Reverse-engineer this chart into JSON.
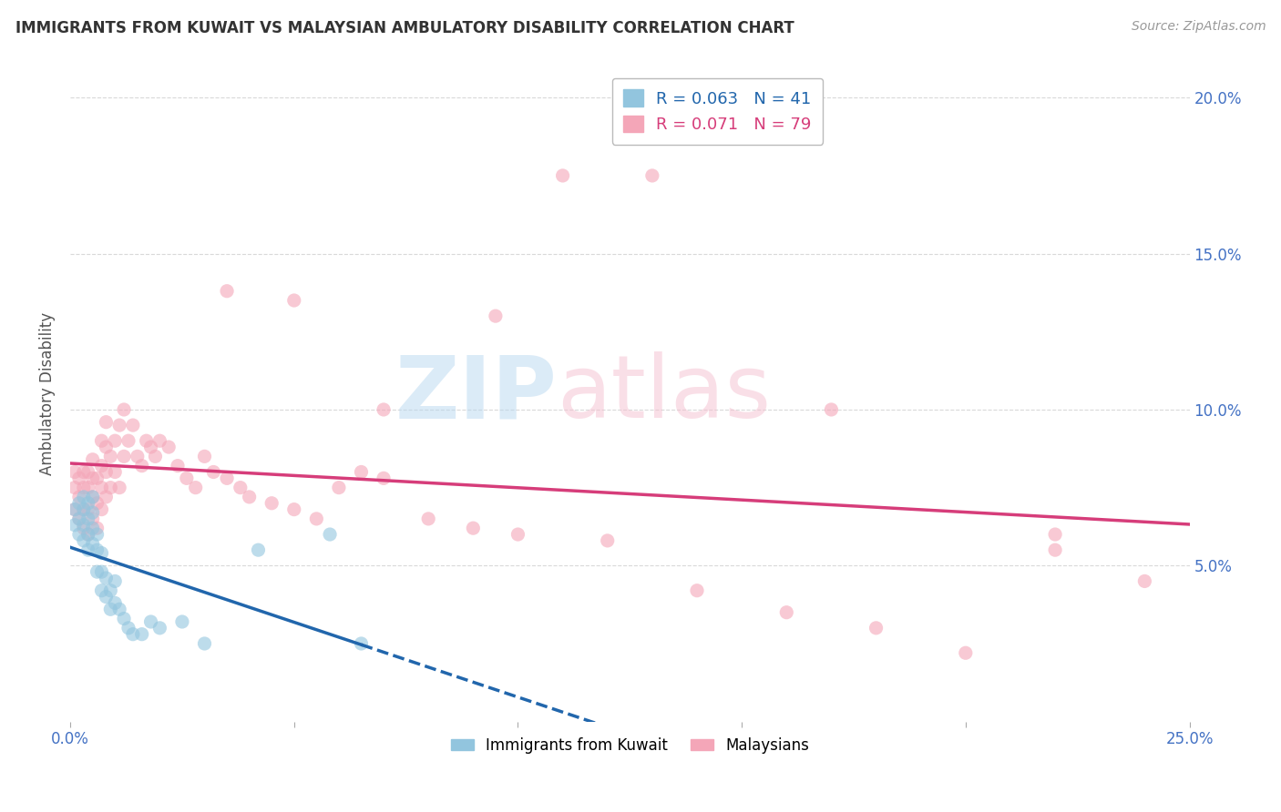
{
  "title": "IMMIGRANTS FROM KUWAIT VS MALAYSIAN AMBULATORY DISABILITY CORRELATION CHART",
  "source": "Source: ZipAtlas.com",
  "ylabel": "Ambulatory Disability",
  "xlim": [
    0.0,
    0.25
  ],
  "ylim": [
    0.0,
    0.21
  ],
  "color_blue": "#92c5de",
  "color_pink": "#f4a6b8",
  "color_line_blue": "#2166ac",
  "color_line_pink": "#d63d7a",
  "background_color": "#ffffff",
  "grid_color": "#d0d0d0",
  "kuwait_x": [
    0.001,
    0.001,
    0.002,
    0.002,
    0.002,
    0.003,
    0.003,
    0.003,
    0.003,
    0.004,
    0.004,
    0.004,
    0.004,
    0.005,
    0.005,
    0.005,
    0.005,
    0.006,
    0.006,
    0.006,
    0.007,
    0.007,
    0.007,
    0.008,
    0.008,
    0.009,
    0.009,
    0.01,
    0.01,
    0.011,
    0.012,
    0.013,
    0.014,
    0.016,
    0.018,
    0.02,
    0.025,
    0.03,
    0.042,
    0.058,
    0.065
  ],
  "kuwait_y": [
    0.063,
    0.068,
    0.06,
    0.065,
    0.07,
    0.058,
    0.063,
    0.068,
    0.072,
    0.055,
    0.06,
    0.065,
    0.07,
    0.057,
    0.062,
    0.067,
    0.072,
    0.048,
    0.055,
    0.06,
    0.042,
    0.048,
    0.054,
    0.04,
    0.046,
    0.036,
    0.042,
    0.038,
    0.045,
    0.036,
    0.033,
    0.03,
    0.028,
    0.028,
    0.032,
    0.03,
    0.032,
    0.025,
    0.055,
    0.06,
    0.025
  ],
  "malaysia_x": [
    0.001,
    0.001,
    0.001,
    0.002,
    0.002,
    0.002,
    0.003,
    0.003,
    0.003,
    0.003,
    0.004,
    0.004,
    0.004,
    0.004,
    0.005,
    0.005,
    0.005,
    0.005,
    0.006,
    0.006,
    0.006,
    0.007,
    0.007,
    0.007,
    0.007,
    0.008,
    0.008,
    0.008,
    0.008,
    0.009,
    0.009,
    0.01,
    0.01,
    0.011,
    0.011,
    0.012,
    0.012,
    0.013,
    0.014,
    0.015,
    0.016,
    0.017,
    0.018,
    0.019,
    0.02,
    0.022,
    0.024,
    0.026,
    0.028,
    0.03,
    0.032,
    0.035,
    0.038,
    0.04,
    0.045,
    0.05,
    0.055,
    0.06,
    0.065,
    0.07,
    0.08,
    0.09,
    0.1,
    0.12,
    0.14,
    0.16,
    0.18,
    0.2,
    0.22,
    0.035,
    0.05,
    0.07,
    0.095,
    0.11,
    0.13,
    0.17,
    0.22,
    0.24
  ],
  "malaysia_y": [
    0.068,
    0.075,
    0.08,
    0.065,
    0.072,
    0.078,
    0.062,
    0.068,
    0.075,
    0.08,
    0.06,
    0.068,
    0.075,
    0.08,
    0.065,
    0.072,
    0.078,
    0.084,
    0.062,
    0.07,
    0.078,
    0.068,
    0.075,
    0.082,
    0.09,
    0.072,
    0.08,
    0.088,
    0.096,
    0.075,
    0.085,
    0.08,
    0.09,
    0.075,
    0.095,
    0.085,
    0.1,
    0.09,
    0.095,
    0.085,
    0.082,
    0.09,
    0.088,
    0.085,
    0.09,
    0.088,
    0.082,
    0.078,
    0.075,
    0.085,
    0.08,
    0.078,
    0.075,
    0.072,
    0.07,
    0.068,
    0.065,
    0.075,
    0.08,
    0.078,
    0.065,
    0.062,
    0.06,
    0.058,
    0.042,
    0.035,
    0.03,
    0.022,
    0.06,
    0.138,
    0.135,
    0.1,
    0.13,
    0.175,
    0.175,
    0.1,
    0.055,
    0.045
  ]
}
